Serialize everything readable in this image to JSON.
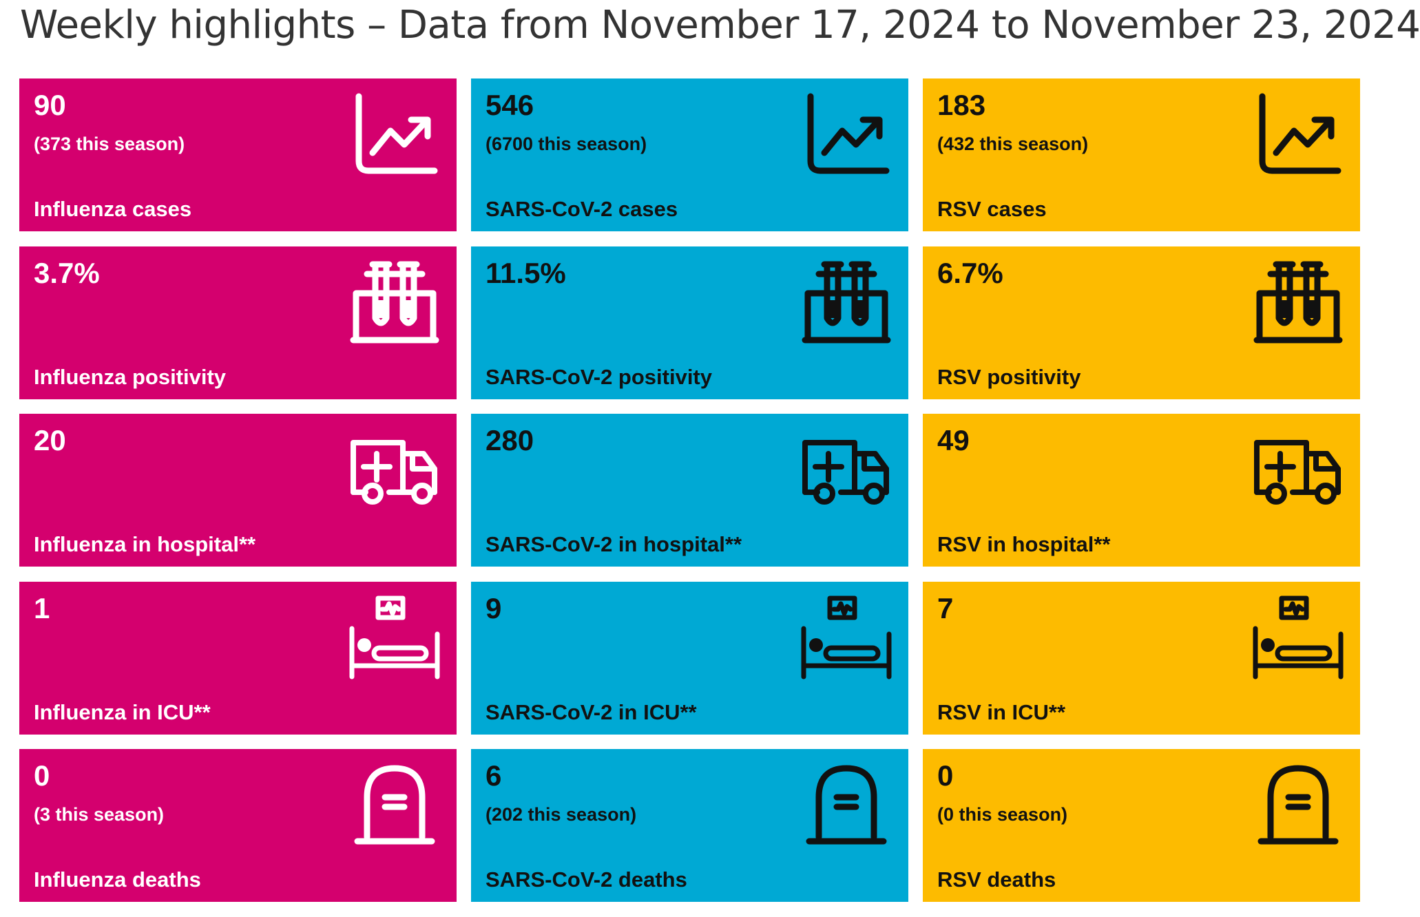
{
  "title": "Weekly highlights – Data from November 17, 2024 to November 23, 2024",
  "colors": {
    "influenza": "#D4006E",
    "sarscov2": "#00A9D4",
    "rsv": "#FDBB00",
    "influenza_text": "#FFFFFF",
    "sarscov2_text": "#111111",
    "rsv_text": "#111111"
  },
  "rows": [
    {
      "icon": "trend-chart-icon",
      "cards": [
        {
          "value": "90",
          "season": "(373 this season)",
          "label": "Influenza cases"
        },
        {
          "value": "546",
          "season": "(6700 this season)",
          "label": "SARS-CoV-2 cases"
        },
        {
          "value": "183",
          "season": "(432 this season)",
          "label": "RSV cases"
        }
      ]
    },
    {
      "icon": "test-tubes-icon",
      "cards": [
        {
          "value": "3.7%",
          "label": "Influenza positivity"
        },
        {
          "value": "11.5%",
          "label": "SARS-CoV-2 positivity"
        },
        {
          "value": "6.7%",
          "label": "RSV positivity"
        }
      ]
    },
    {
      "icon": "ambulance-icon",
      "cards": [
        {
          "value": "20",
          "label": "Influenza in hospital**"
        },
        {
          "value": "280",
          "label": "SARS-CoV-2 in hospital**"
        },
        {
          "value": "49",
          "label": "RSV in hospital**"
        }
      ]
    },
    {
      "icon": "icu-bed-icon",
      "cards": [
        {
          "value": "1",
          "label": "Influenza in ICU**"
        },
        {
          "value": "9",
          "label": "SARS-CoV-2 in ICU**"
        },
        {
          "value": "7",
          "label": "RSV in ICU**"
        }
      ]
    },
    {
      "icon": "tombstone-icon",
      "cards": [
        {
          "value": "0",
          "season": "(3 this season)",
          "label": "Influenza deaths"
        },
        {
          "value": "6",
          "season": "(202 this season)",
          "label": "SARS-CoV-2 deaths"
        },
        {
          "value": "0",
          "season": "(0 this season)",
          "label": "RSV deaths"
        }
      ]
    }
  ]
}
